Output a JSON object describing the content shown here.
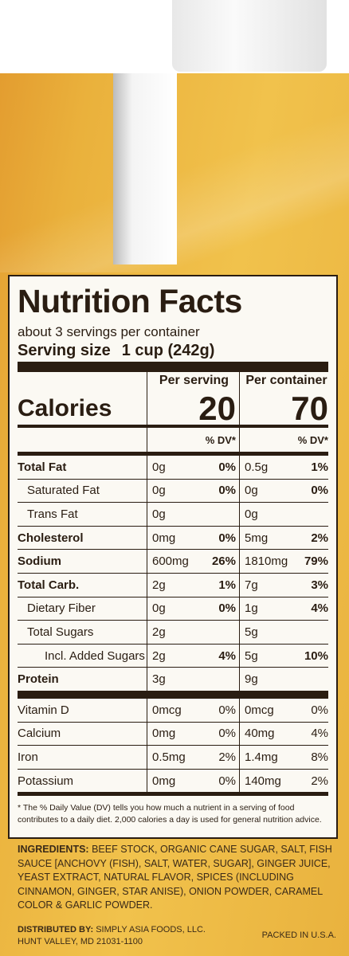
{
  "label": {
    "title": "Nutrition Facts",
    "servings": "about 3 servings per container",
    "serving_size_label": "Serving size",
    "serving_size_value": "1 cup (242g)",
    "columns": [
      "Per serving",
      "Per container"
    ],
    "calories_label": "Calories",
    "calories": [
      "20",
      "70"
    ],
    "dv_headers": [
      "% DV*",
      "% DV*"
    ],
    "nutrients": [
      {
        "name": "Total Fat",
        "bold": true,
        "level": 0,
        "serving": {
          "amount": "0g",
          "dv": "0%"
        },
        "container": {
          "amount": "0.5g",
          "dv": "1%"
        }
      },
      {
        "name": "Saturated Fat",
        "level": 1,
        "serving": {
          "amount": "0g",
          "dv": "0%"
        },
        "container": {
          "amount": "0g",
          "dv": "0%"
        }
      },
      {
        "name": "Trans Fat",
        "level": 1,
        "serving": {
          "amount": "0g"
        },
        "container": {
          "amount": "0g"
        }
      },
      {
        "name": "Cholesterol",
        "bold": true,
        "level": 0,
        "serving": {
          "amount": "0mg",
          "dv": "0%"
        },
        "container": {
          "amount": "5mg",
          "dv": "2%"
        }
      },
      {
        "name": "Sodium",
        "bold": true,
        "level": 0,
        "serving": {
          "amount": "600mg",
          "dv": "26%"
        },
        "container": {
          "amount": "1810mg",
          "dv": "79%"
        }
      },
      {
        "name": "Total Carb.",
        "bold": true,
        "level": 0,
        "serving": {
          "amount": "2g",
          "dv": "1%"
        },
        "container": {
          "amount": "7g",
          "dv": "3%"
        }
      },
      {
        "name": "Dietary Fiber",
        "level": 1,
        "serving": {
          "amount": "0g",
          "dv": "0%"
        },
        "container": {
          "amount": "1g",
          "dv": "4%"
        }
      },
      {
        "name": "Total Sugars",
        "level": 1,
        "serving": {
          "amount": "2g"
        },
        "container": {
          "amount": "5g"
        }
      },
      {
        "name": "Incl. Added Sugars",
        "level": 2,
        "serving": {
          "amount": "2g",
          "dv": "4%"
        },
        "container": {
          "amount": "5g",
          "dv": "10%"
        }
      },
      {
        "name": "Protein",
        "bold": true,
        "level": 0,
        "serving": {
          "amount": "3g"
        },
        "container": {
          "amount": "9g"
        }
      }
    ],
    "vitamins": [
      {
        "name": "Vitamin D",
        "serving": {
          "amount": "0mcg",
          "dv": "0%"
        },
        "container": {
          "amount": "0mcg",
          "dv": "0%"
        }
      },
      {
        "name": "Calcium",
        "serving": {
          "amount": "0mg",
          "dv": "0%"
        },
        "container": {
          "amount": "40mg",
          "dv": "4%"
        }
      },
      {
        "name": "Iron",
        "serving": {
          "amount": "0.5mg",
          "dv": "2%"
        },
        "container": {
          "amount": "1.4mg",
          "dv": "8%"
        }
      },
      {
        "name": "Potassium",
        "serving": {
          "amount": "0mg",
          "dv": "0%"
        },
        "container": {
          "amount": "140mg",
          "dv": "2%"
        }
      }
    ],
    "footnote": "* The % Daily Value (DV) tells you how much a nutrient in a serving of food contributes to a daily diet. 2,000 calories a day is used for general nutrition advice."
  },
  "ingredients": {
    "label": "INGREDIENTS:",
    "text": "BEEF STOCK, ORGANIC CANE SUGAR, SALT, FISH SAUCE [ANCHOVY (FISH), SALT, WATER, SUGAR], GINGER JUICE, YEAST EXTRACT, NATURAL FLAVOR, SPICES (INCLUDING CINNAMON, GINGER, STAR ANISE), ONION POWDER, CARAMEL COLOR & GARLIC POWDER."
  },
  "distributor": {
    "label": "DISTRIBUTED BY:",
    "company": "SIMPLY ASIA FOODS, LLC.",
    "address": "HUNT VALLEY, MD 21031-1100",
    "packed": "PACKED IN U.S.A."
  }
}
